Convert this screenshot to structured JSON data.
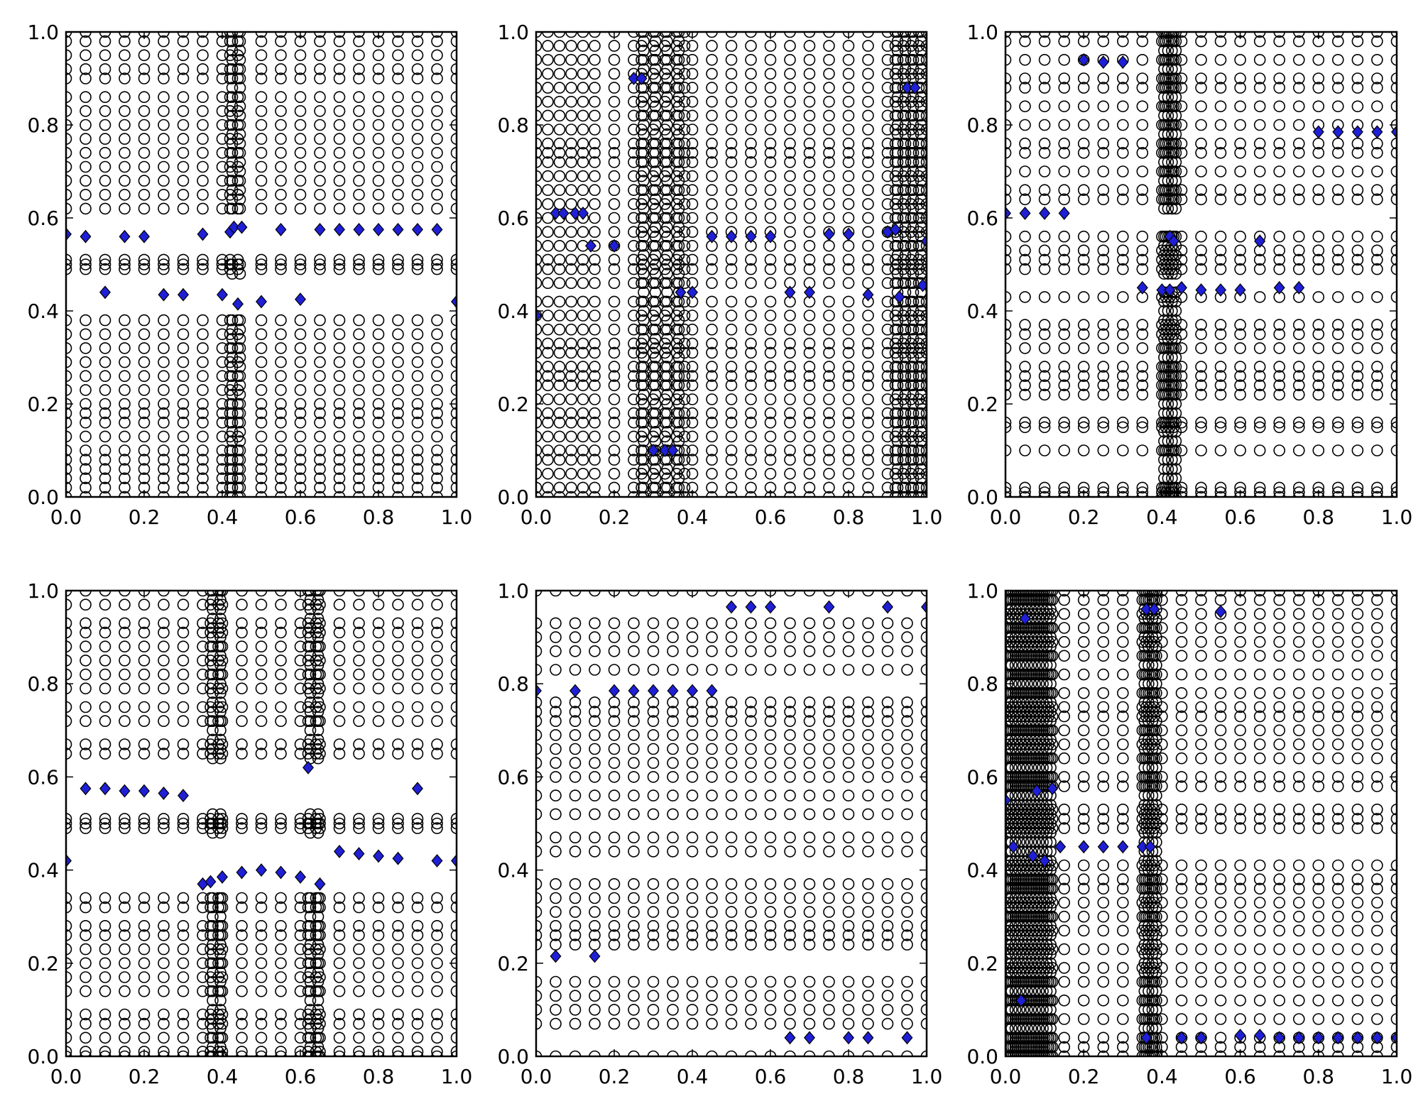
{
  "figure": {
    "layout": "2x3 grid of scatter subplots"
  },
  "colors": {
    "background": "#ffffff",
    "axes": "#000000",
    "circle_edge": "#000000",
    "diamond_fill": "#1f1fd6",
    "diamond_edge": "#000000"
  },
  "chart_data": [
    {
      "type": "scatter",
      "panel": "top-left",
      "xlim": [
        0,
        1
      ],
      "ylim": [
        0,
        1
      ],
      "xticks": [
        "0.0",
        "0.2",
        "0.4",
        "0.6",
        "0.8",
        "1.0"
      ],
      "yticks": [
        "0.0",
        "0.2",
        "0.4",
        "0.6",
        "0.8",
        "1.0"
      ],
      "circles": {
        "columns": [
          0,
          0.05,
          0.1,
          0.15,
          0.2,
          0.25,
          0.3,
          0.35,
          0.4,
          0.42,
          0.44,
          0.5,
          0.55,
          0.6,
          0.65,
          0.7,
          0.75,
          0.8,
          0.85,
          0.9,
          0.95,
          1.0
        ],
        "rows": [
          0.0,
          0.02,
          0.04,
          0.06,
          0.08,
          0.1,
          0.13,
          0.16,
          0.18,
          0.2,
          0.23,
          0.26,
          0.29,
          0.32,
          0.35,
          0.38,
          0.49,
          0.5,
          0.51,
          0.62,
          0.65,
          0.68,
          0.71,
          0.74,
          0.77,
          0.8,
          0.83,
          0.86,
          0.9,
          0.92,
          0.95,
          0.98,
          1.0
        ],
        "gap": [
          0.39,
          0.48,
          0.52,
          0.61
        ],
        "dense_columns": [
          0.42,
          0.44
        ]
      },
      "diamonds": [
        [
          0.0,
          0.565
        ],
        [
          0.05,
          0.56
        ],
        [
          0.15,
          0.56
        ],
        [
          0.2,
          0.56
        ],
        [
          0.35,
          0.565
        ],
        [
          0.42,
          0.57
        ],
        [
          0.43,
          0.58
        ],
        [
          0.45,
          0.58
        ],
        [
          0.55,
          0.575
        ],
        [
          0.65,
          0.575
        ],
        [
          0.7,
          0.575
        ],
        [
          0.75,
          0.575
        ],
        [
          0.8,
          0.575
        ],
        [
          0.85,
          0.575
        ],
        [
          0.9,
          0.575
        ],
        [
          0.95,
          0.575
        ],
        [
          0.1,
          0.44
        ],
        [
          0.25,
          0.435
        ],
        [
          0.3,
          0.435
        ],
        [
          0.4,
          0.435
        ],
        [
          0.44,
          0.415
        ],
        [
          0.5,
          0.42
        ],
        [
          0.6,
          0.425
        ],
        [
          1.0,
          0.42
        ]
      ]
    },
    {
      "type": "scatter",
      "panel": "top-middle",
      "xlim": [
        0,
        1
      ],
      "ylim": [
        0,
        1
      ],
      "xticks": [
        "0.0",
        "0.2",
        "0.4",
        "0.6",
        "0.8",
        "1.0"
      ],
      "yticks": [
        "0.0",
        "0.2",
        "0.4",
        "0.6",
        "0.8",
        "1.0"
      ],
      "circles": {
        "columns": [
          0,
          0.03,
          0.06,
          0.09,
          0.12,
          0.15,
          0.2,
          0.25,
          0.27,
          0.3,
          0.33,
          0.36,
          0.38,
          0.4,
          0.45,
          0.5,
          0.55,
          0.6,
          0.65,
          0.7,
          0.75,
          0.8,
          0.85,
          0.9,
          0.92,
          0.94,
          0.96,
          0.98,
          1.0
        ],
        "rows": [
          0.0,
          0.02,
          0.05,
          0.08,
          0.1,
          0.13,
          0.16,
          0.18,
          0.21,
          0.24,
          0.26,
          0.28,
          0.31,
          0.33,
          0.36,
          0.39,
          0.42,
          0.46,
          0.49,
          0.51,
          0.54,
          0.57,
          0.6,
          0.63,
          0.66,
          0.69,
          0.72,
          0.74,
          0.76,
          0.79,
          0.82,
          0.85,
          0.88,
          0.91,
          0.94,
          0.97,
          1.0
        ],
        "gap": [],
        "dense_columns": [
          0.27,
          0.3,
          0.33,
          0.36,
          0.92,
          0.94,
          0.96,
          0.98
        ]
      },
      "diamonds": [
        [
          0.0,
          0.39
        ],
        [
          0.05,
          0.61
        ],
        [
          0.07,
          0.61
        ],
        [
          0.1,
          0.61
        ],
        [
          0.12,
          0.61
        ],
        [
          0.14,
          0.54
        ],
        [
          0.2,
          0.54
        ],
        [
          0.25,
          0.9
        ],
        [
          0.27,
          0.9
        ],
        [
          0.3,
          0.1
        ],
        [
          0.33,
          0.1
        ],
        [
          0.35,
          0.1
        ],
        [
          0.37,
          0.44
        ],
        [
          0.4,
          0.44
        ],
        [
          0.45,
          0.56
        ],
        [
          0.5,
          0.56
        ],
        [
          0.55,
          0.56
        ],
        [
          0.6,
          0.56
        ],
        [
          0.65,
          0.44
        ],
        [
          0.7,
          0.44
        ],
        [
          0.75,
          0.565
        ],
        [
          0.8,
          0.565
        ],
        [
          0.85,
          0.435
        ],
        [
          0.9,
          0.57
        ],
        [
          0.92,
          0.575
        ],
        [
          0.93,
          0.43
        ],
        [
          0.95,
          0.88
        ],
        [
          0.97,
          0.88
        ],
        [
          0.99,
          0.455
        ],
        [
          1.0,
          0.55
        ]
      ]
    },
    {
      "type": "scatter",
      "panel": "top-right",
      "xlim": [
        0,
        1
      ],
      "ylim": [
        0,
        1
      ],
      "xticks": [
        "0.0",
        "0.2",
        "0.4",
        "0.6",
        "0.8",
        "1.0"
      ],
      "yticks": [
        "0.0",
        "0.2",
        "0.4",
        "0.6",
        "0.8",
        "1.0"
      ],
      "circles": {
        "columns": [
          0,
          0.05,
          0.1,
          0.15,
          0.2,
          0.25,
          0.3,
          0.35,
          0.4,
          0.41,
          0.42,
          0.43,
          0.45,
          0.5,
          0.55,
          0.6,
          0.65,
          0.7,
          0.75,
          0.8,
          0.85,
          0.9,
          0.95,
          1.0
        ],
        "rows": [
          0.0,
          0.01,
          0.02,
          0.1,
          0.15,
          0.16,
          0.22,
          0.24,
          0.26,
          0.28,
          0.32,
          0.35,
          0.37,
          0.43,
          0.49,
          0.51,
          0.53,
          0.56,
          0.64,
          0.66,
          0.7,
          0.74,
          0.76,
          0.8,
          0.84,
          0.88,
          0.9,
          0.94,
          0.98,
          1.0
        ],
        "gap": [
          0.45,
          0.47,
          0.58,
          0.62
        ],
        "dense_columns": [
          0.4,
          0.41,
          0.42,
          0.43
        ]
      },
      "diamonds": [
        [
          0.0,
          0.61
        ],
        [
          0.05,
          0.61
        ],
        [
          0.1,
          0.61
        ],
        [
          0.15,
          0.61
        ],
        [
          0.2,
          0.94
        ],
        [
          0.25,
          0.935
        ],
        [
          0.3,
          0.935
        ],
        [
          0.35,
          0.45
        ],
        [
          0.4,
          0.445
        ],
        [
          0.42,
          0.445
        ],
        [
          0.42,
          0.56
        ],
        [
          0.43,
          0.55
        ],
        [
          0.45,
          0.45
        ],
        [
          0.5,
          0.445
        ],
        [
          0.55,
          0.445
        ],
        [
          0.6,
          0.445
        ],
        [
          0.65,
          0.55
        ],
        [
          0.7,
          0.45
        ],
        [
          0.75,
          0.45
        ],
        [
          0.8,
          0.785
        ],
        [
          0.85,
          0.785
        ],
        [
          0.9,
          0.785
        ],
        [
          0.95,
          0.785
        ],
        [
          1.0,
          0.785
        ]
      ]
    },
    {
      "type": "scatter",
      "panel": "bottom-left",
      "xlim": [
        0,
        1
      ],
      "ylim": [
        0,
        1
      ],
      "xticks": [
        "0.0",
        "0.2",
        "0.4",
        "0.6",
        "0.8",
        "1.0"
      ],
      "yticks": [
        "0.0",
        "0.2",
        "0.4",
        "0.6",
        "0.8",
        "1.0"
      ],
      "circles": {
        "columns": [
          0,
          0.05,
          0.1,
          0.15,
          0.2,
          0.25,
          0.3,
          0.35,
          0.37,
          0.39,
          0.4,
          0.45,
          0.5,
          0.55,
          0.6,
          0.62,
          0.64,
          0.65,
          0.7,
          0.75,
          0.8,
          0.85,
          0.9,
          0.95,
          1.0
        ],
        "rows": [
          0.0,
          0.01,
          0.04,
          0.07,
          0.09,
          0.14,
          0.17,
          0.2,
          0.23,
          0.26,
          0.28,
          0.32,
          0.34,
          0.49,
          0.5,
          0.51,
          0.65,
          0.67,
          0.72,
          0.75,
          0.79,
          0.82,
          0.85,
          0.88,
          0.91,
          0.93,
          0.97,
          1.0
        ],
        "gap": [
          0.36,
          0.47,
          0.53,
          0.63
        ],
        "dense_columns": [
          0.37,
          0.39,
          0.62,
          0.64
        ]
      },
      "diamonds": [
        [
          0.0,
          0.42
        ],
        [
          0.05,
          0.575
        ],
        [
          0.1,
          0.575
        ],
        [
          0.15,
          0.57
        ],
        [
          0.2,
          0.57
        ],
        [
          0.25,
          0.565
        ],
        [
          0.3,
          0.56
        ],
        [
          0.35,
          0.37
        ],
        [
          0.37,
          0.375
        ],
        [
          0.4,
          0.385
        ],
        [
          0.45,
          0.395
        ],
        [
          0.5,
          0.4
        ],
        [
          0.55,
          0.395
        ],
        [
          0.6,
          0.385
        ],
        [
          0.62,
          0.62
        ],
        [
          0.65,
          0.37
        ],
        [
          0.7,
          0.44
        ],
        [
          0.75,
          0.435
        ],
        [
          0.8,
          0.43
        ],
        [
          0.85,
          0.425
        ],
        [
          0.9,
          0.575
        ],
        [
          0.95,
          0.42
        ],
        [
          1.0,
          0.42
        ]
      ]
    },
    {
      "type": "scatter",
      "panel": "bottom-middle",
      "xlim": [
        0,
        1
      ],
      "ylim": [
        0,
        1
      ],
      "xticks": [
        "0.0",
        "0.2",
        "0.4",
        "0.6",
        "0.8",
        "1.0"
      ],
      "yticks": [
        "0.0",
        "0.2",
        "0.4",
        "0.6",
        "0.8",
        "1.0"
      ],
      "circles": {
        "columns": [
          0,
          0.05,
          0.1,
          0.15,
          0.2,
          0.25,
          0.3,
          0.35,
          0.4,
          0.45,
          0.5,
          0.55,
          0.6,
          0.65,
          0.7,
          0.75,
          0.8,
          0.85,
          0.9,
          0.95,
          1.0
        ],
        "rows": [
          0.0,
          0.07,
          0.1,
          0.13,
          0.16,
          0.24,
          0.26,
          0.28,
          0.31,
          0.34,
          0.37,
          0.44,
          0.47,
          0.52,
          0.56,
          0.6,
          0.63,
          0.66,
          0.69,
          0.72,
          0.74,
          0.76,
          0.83,
          0.87,
          0.9,
          0.93,
          1.0
        ],
        "gap": [],
        "dense_columns": []
      },
      "diamonds": [
        [
          0.0,
          0.785
        ],
        [
          0.05,
          0.215
        ],
        [
          0.1,
          0.785
        ],
        [
          0.15,
          0.215
        ],
        [
          0.2,
          0.785
        ],
        [
          0.25,
          0.785
        ],
        [
          0.3,
          0.785
        ],
        [
          0.35,
          0.785
        ],
        [
          0.4,
          0.785
        ],
        [
          0.45,
          0.785
        ],
        [
          0.5,
          0.965
        ],
        [
          0.55,
          0.965
        ],
        [
          0.6,
          0.965
        ],
        [
          0.65,
          0.04
        ],
        [
          0.7,
          0.04
        ],
        [
          0.75,
          0.965
        ],
        [
          0.8,
          0.04
        ],
        [
          0.85,
          0.04
        ],
        [
          0.9,
          0.965
        ],
        [
          0.95,
          0.04
        ],
        [
          1.0,
          0.965
        ]
      ]
    },
    {
      "type": "scatter",
      "panel": "bottom-right",
      "xlim": [
        0,
        1
      ],
      "ylim": [
        0,
        1
      ],
      "xticks": [
        "0.0",
        "0.2",
        "0.4",
        "0.6",
        "0.8",
        "1.0"
      ],
      "yticks": [
        "0.0",
        "0.2",
        "0.4",
        "0.6",
        "0.8",
        "1.0"
      ],
      "circles": {
        "columns": [
          0,
          0.01,
          0.02,
          0.03,
          0.04,
          0.05,
          0.06,
          0.07,
          0.08,
          0.09,
          0.1,
          0.11,
          0.12,
          0.15,
          0.2,
          0.25,
          0.3,
          0.35,
          0.36,
          0.37,
          0.38,
          0.4,
          0.45,
          0.5,
          0.55,
          0.6,
          0.65,
          0.7,
          0.75,
          0.8,
          0.85,
          0.9,
          0.95,
          1.0
        ],
        "rows": [
          0.0,
          0.02,
          0.04,
          0.08,
          0.12,
          0.16,
          0.19,
          0.23,
          0.27,
          0.3,
          0.33,
          0.36,
          0.38,
          0.41,
          0.49,
          0.51,
          0.53,
          0.58,
          0.6,
          0.64,
          0.67,
          0.7,
          0.73,
          0.75,
          0.78,
          0.82,
          0.86,
          0.89,
          0.92,
          0.95,
          0.98,
          1.0
        ],
        "gap": [],
        "dense_columns": [
          0,
          0.01,
          0.02,
          0.03,
          0.04,
          0.05,
          0.06,
          0.07,
          0.08,
          0.09,
          0.1,
          0.11,
          0.35,
          0.36,
          0.37,
          0.38
        ]
      },
      "diamonds": [
        [
          0.0,
          0.55
        ],
        [
          0.02,
          0.45
        ],
        [
          0.04,
          0.12
        ],
        [
          0.05,
          0.94
        ],
        [
          0.07,
          0.43
        ],
        [
          0.08,
          0.57
        ],
        [
          0.1,
          0.42
        ],
        [
          0.12,
          0.575
        ],
        [
          0.14,
          0.45
        ],
        [
          0.2,
          0.45
        ],
        [
          0.25,
          0.45
        ],
        [
          0.3,
          0.45
        ],
        [
          0.35,
          0.45
        ],
        [
          0.37,
          0.45
        ],
        [
          0.36,
          0.04
        ],
        [
          0.36,
          0.96
        ],
        [
          0.38,
          0.96
        ],
        [
          0.45,
          0.04
        ],
        [
          0.5,
          0.04
        ],
        [
          0.55,
          0.955
        ],
        [
          0.6,
          0.045
        ],
        [
          0.65,
          0.045
        ],
        [
          0.7,
          0.04
        ],
        [
          0.75,
          0.04
        ],
        [
          0.8,
          0.04
        ],
        [
          0.85,
          0.04
        ],
        [
          0.9,
          0.04
        ],
        [
          0.95,
          0.04
        ],
        [
          1.0,
          0.04
        ]
      ]
    }
  ]
}
